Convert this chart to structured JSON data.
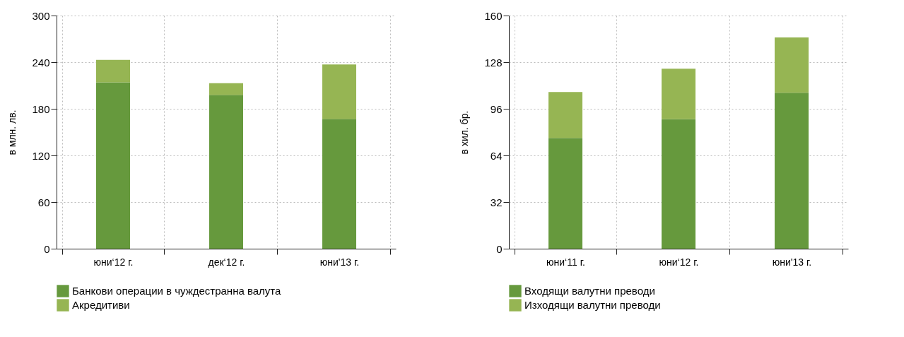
{
  "chart_data": [
    {
      "type": "bar",
      "stacked": true,
      "ylabel": "в млн. лв.",
      "categories": [
        "юни‘12 г.",
        "дек‘12 г.",
        "юни'13 г."
      ],
      "ylim": [
        0,
        300
      ],
      "yticks": [
        0,
        60,
        120,
        180,
        240,
        300
      ],
      "grid": true,
      "legend": "bottom",
      "series": [
        {
          "name": "Банкови операции в чуждестранна валута",
          "color": "#66993d",
          "values": [
            214,
            198,
            167
          ]
        },
        {
          "name": "Акредитиви",
          "color": "#96b553",
          "values": [
            29,
            15,
            70
          ]
        }
      ]
    },
    {
      "type": "bar",
      "stacked": true,
      "ylabel": "в хил. бр.",
      "categories": [
        "юни‘11 г.",
        "юни‘12 г.",
        "юни'13 г."
      ],
      "ylim": [
        0,
        160
      ],
      "yticks": [
        0,
        32,
        64,
        96,
        128,
        160
      ],
      "grid": true,
      "legend": "bottom",
      "series": [
        {
          "name": "Входящи валутни преводи",
          "color": "#66993d",
          "values": [
            76,
            89,
            107
          ]
        },
        {
          "name": "Изходящи валутни преводи",
          "color": "#96b553",
          "values": [
            31.5,
            34.5,
            38
          ]
        }
      ]
    }
  ]
}
